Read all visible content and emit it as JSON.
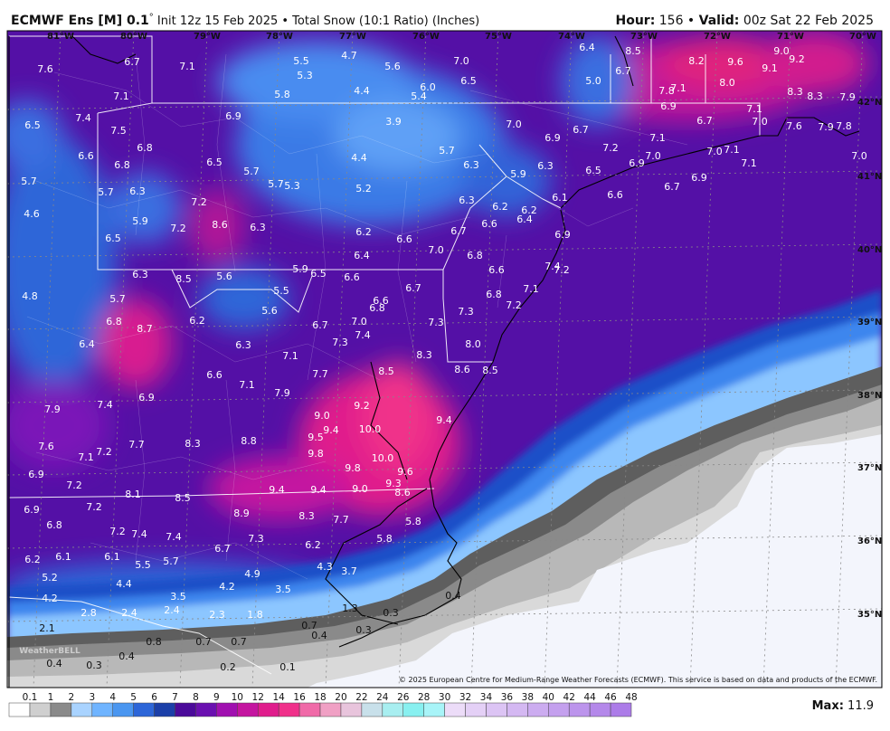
{
  "header": {
    "model": "ECMWF Ens [M] 0.1",
    "degree": "°",
    "description": " Init 12z 15 Feb 2025 • Total Snow (10:1 Ratio) (Inches)",
    "hour_label": "Hour:",
    "hour_value": " 156 • ",
    "valid_label": "Valid:",
    "valid_value": " 00z Sat 22 Feb 2025"
  },
  "map": {
    "longitude_labels": [
      "81°W",
      "80°W",
      "79°W",
      "78°W",
      "77°W",
      "76°W",
      "75°W",
      "74°W",
      "73°W",
      "72°W",
      "71°W",
      "70°W"
    ],
    "latitude_labels": [
      "42°N",
      "41°N",
      "40°N",
      "39°N",
      "38°N",
      "37°N",
      "36°N",
      "35°N"
    ],
    "point_values": [
      "7.6",
      "6.7",
      "7.1",
      "5.5",
      "4.7",
      "5.3",
      "5.6",
      "7.0",
      "6.5",
      "6.4",
      "8.5",
      "8.2",
      "9.6",
      "9.0",
      "9.2",
      "9.1",
      "6.7",
      "5.0",
      "8.0",
      "7.8",
      "7.1",
      "8.3",
      "8.3",
      "7.9",
      "7.1",
      "5.8",
      "4.4",
      "6.0",
      "5.4",
      "6.9",
      "7.1",
      "7.4",
      "6.5",
      "6.9",
      "3.9",
      "7.0",
      "6.7",
      "7.0",
      "7.6",
      "7.9",
      "7.8",
      "7.5",
      "6.9",
      "6.7",
      "7.1",
      "6.8",
      "7.2",
      "5.7",
      "4.4",
      "6.6",
      "6.8",
      "6.5",
      "5.7",
      "6.3",
      "6.3",
      "7.0",
      "6.9",
      "7.0",
      "7.1",
      "7.1",
      "7.0",
      "5.7",
      "5.7",
      "5.3",
      "5.2",
      "5.9",
      "6.5",
      "6.7",
      "6.9",
      "5.7",
      "6.3",
      "6.6",
      "7.2",
      "6.1",
      "6.3",
      "6.2",
      "6.2",
      "4.6",
      "5.9",
      "7.2",
      "8.6",
      "6.3",
      "6.2",
      "6.6",
      "6.4",
      "6.6",
      "6.9",
      "7.0",
      "6.7",
      "6.5",
      "6.4",
      "6.8",
      "7.4",
      "7.2",
      "6.6",
      "6.3",
      "8.5",
      "5.6",
      "5.9",
      "6.5",
      "6.6",
      "6.7",
      "7.1",
      "5.5",
      "6.8",
      "4.8",
      "5.7",
      "6.6",
      "6.8",
      "7.2",
      "5.6",
      "7.3",
      "6.2",
      "7.0",
      "6.8",
      "8.7",
      "6.7",
      "7.3",
      "7.4",
      "8.0",
      "6.4",
      "6.3",
      "7.3",
      "7.1",
      "8.3",
      "8.5",
      "8.6",
      "8.5",
      "6.6",
      "7.7",
      "7.1",
      "7.9",
      "6.9",
      "7.4",
      "9.2",
      "7.9",
      "9.0",
      "9.4",
      "9.4",
      "10.0",
      "9.5",
      "7.6",
      "7.7",
      "8.3",
      "8.8",
      "7.1",
      "7.2",
      "9.8",
      "10.0",
      "6.9",
      "9.8",
      "9.6",
      "7.2",
      "9.3",
      "8.6",
      "9.4",
      "9.4",
      "9.0",
      "8.1",
      "8.5",
      "6.9",
      "7.2",
      "8.9",
      "8.3",
      "7.7",
      "5.8",
      "6.8",
      "7.2",
      "7.4",
      "7.4",
      "7.3",
      "5.8",
      "6.7",
      "6.2",
      "6.2",
      "6.1",
      "6.1",
      "5.5",
      "5.7",
      "4.3",
      "3.7",
      "4.9",
      "5.2",
      "4.4",
      "4.2",
      "3.5",
      "3.5",
      "4.2",
      "0.4",
      "2.8",
      "2.4",
      "2.4",
      "2.3",
      "1.8",
      "1.3",
      "0.3",
      "0.7",
      "2.1",
      "0.3",
      "0.4",
      "0.8",
      "0.7",
      "0.7",
      "0.4",
      "0.3",
      "0.4",
      "0.2",
      "0.1"
    ],
    "watermark": "WeatherBELL",
    "copyright": "© 2025 European Centre for Medium-Range Weather Forecasts (ECMWF). This service is based on data and products of the ECMWF."
  },
  "colorbar": {
    "labels": [
      "0.1",
      "1",
      "2",
      "3",
      "4",
      "5",
      "6",
      "7",
      "8",
      "9",
      "10",
      "12",
      "14",
      "16",
      "18",
      "20",
      "22",
      "24",
      "26",
      "28",
      "30",
      "32",
      "34",
      "36",
      "38",
      "40",
      "42",
      "44",
      "46",
      "48"
    ],
    "colors": [
      "#ffffff",
      "#cfcfcf",
      "#8a8a8a",
      "#a9d3ff",
      "#6fb4ff",
      "#4a96f0",
      "#2d66d8",
      "#1b3fa8",
      "#4b0a9a",
      "#6a10b0",
      "#a010b0",
      "#c415a0",
      "#e01c8c",
      "#f0308a",
      "#f06aa8",
      "#f0a0c4",
      "#e8c4dc",
      "#c8e0ea",
      "#a8eef0",
      "#88f0f0",
      "#a8f4f8",
      "#ecdcf8",
      "#e4d0f6",
      "#dcc4f4",
      "#d4b8f2",
      "#ccacf0",
      "#c4a0ee",
      "#bc94ec",
      "#b488ea",
      "#ac7ce8"
    ]
  },
  "footer": {
    "max_label": "Max:",
    "max_value": " 11.9"
  }
}
